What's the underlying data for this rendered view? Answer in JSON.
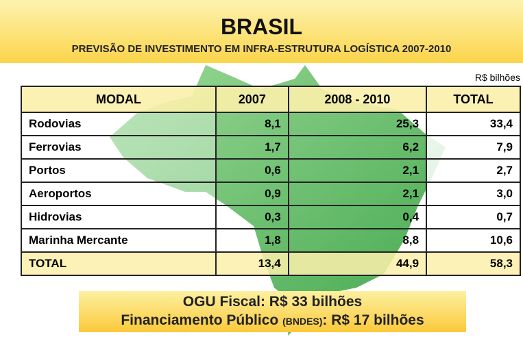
{
  "header": {
    "title": "BRASIL",
    "subtitle": "PREVISÃO DE INVESTIMENTO EM INFRA-ESTRUTURA LOGÍSTICA 2007-2010"
  },
  "unit": "R$ bilhões",
  "table": {
    "columns": [
      "MODAL",
      "2007",
      "2008 - 2010",
      "TOTAL"
    ],
    "rows": [
      [
        "Rodovias",
        "8,1",
        "25,3",
        "33,4"
      ],
      [
        "Ferrovias",
        "1,7",
        "6,2",
        "7,9"
      ],
      [
        "Portos",
        "0,6",
        "2,1",
        "2,7"
      ],
      [
        "Aeroportos",
        "0,9",
        "2,1",
        "3,0"
      ],
      [
        "Hidrovias",
        "0,3",
        "0,4",
        "0,7"
      ],
      [
        "Marinha Mercante",
        "1,8",
        "8,8",
        "10,6"
      ]
    ],
    "total": [
      "TOTAL",
      "13,4",
      "44,9",
      "58,3"
    ]
  },
  "footer": {
    "line1": "OGU Fiscal: R$ 33 bilhões",
    "line2": {
      "before": "Financiamento Público",
      "small": "(BNDES)",
      "after": ": R$ 17 bilhões"
    }
  }
}
